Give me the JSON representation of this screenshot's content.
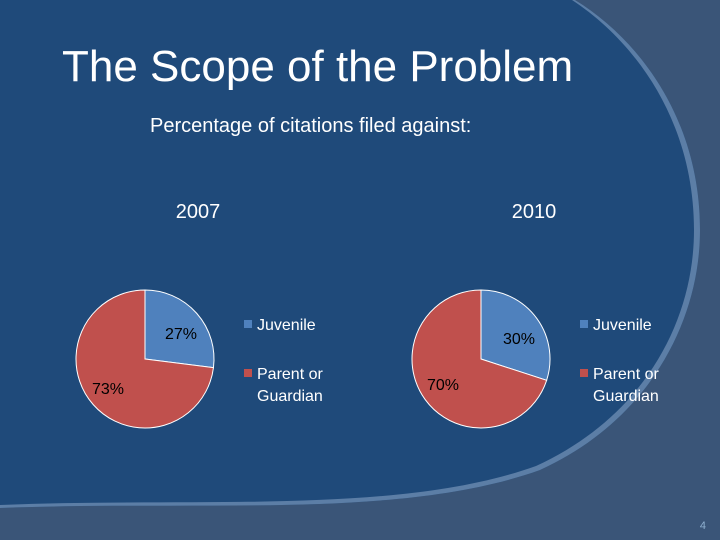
{
  "slide": {
    "title": "The Scope of the Problem",
    "subtitle": "Percentage of citations filed against:",
    "page_number": "4"
  },
  "colors": {
    "background": "#1f4a7a",
    "juvenile": "#4f81bd",
    "parent": "#c0504d"
  },
  "chart_data": [
    {
      "type": "pie",
      "title": "2007",
      "categories": [
        "Juvenile",
        "Parent or Guardian"
      ],
      "values": [
        27,
        73
      ],
      "labels": [
        "27%",
        "73%"
      ],
      "colors": [
        "#4f81bd",
        "#c0504d"
      ],
      "legend": "right"
    },
    {
      "type": "pie",
      "title": "2010",
      "categories": [
        "Juvenile",
        "Parent or Guardian"
      ],
      "values": [
        30,
        70
      ],
      "labels": [
        "30%",
        "70%"
      ],
      "colors": [
        "#4f81bd",
        "#c0504d"
      ],
      "legend": "right"
    }
  ]
}
